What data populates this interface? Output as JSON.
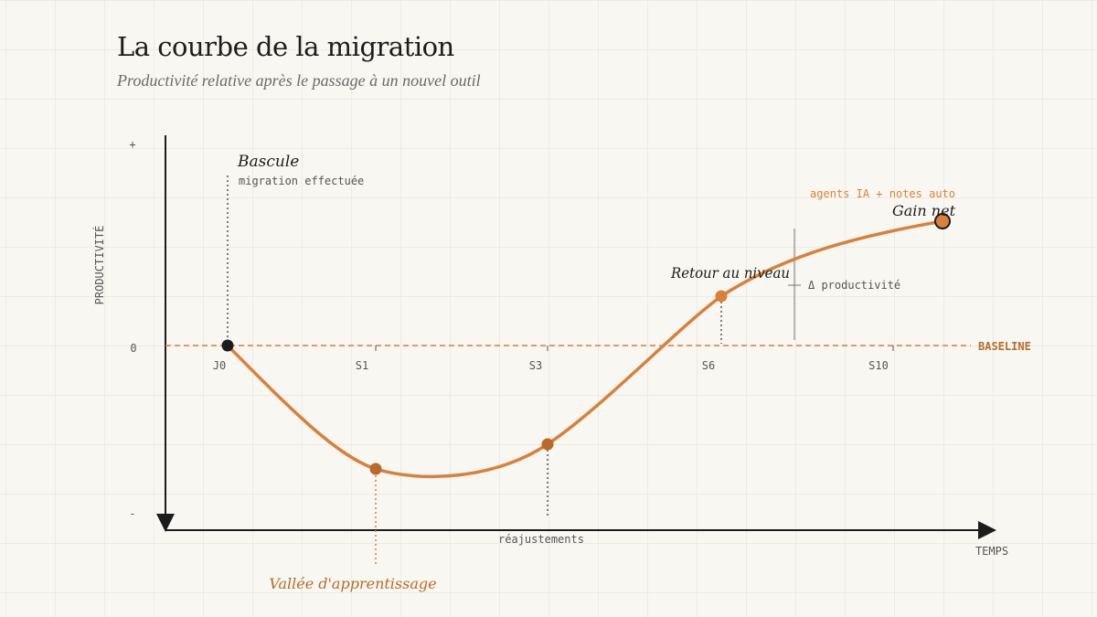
{
  "header": {
    "title": "La courbe de la migration",
    "subtitle": "Productivité relative après le passage à un nouvel outil"
  },
  "axes": {
    "y_label": "PRODUCTIVITÉ",
    "x_label": "TEMPS",
    "y_plus": "+",
    "y_zero": "0",
    "y_minus": "-",
    "baseline_label": "BASELINE",
    "x_ticks": [
      "J0",
      "S1",
      "S3",
      "S6",
      "S10"
    ]
  },
  "annotations": {
    "bascule_title": "Bascule",
    "bascule_sub": "migration effectuée",
    "vallee": "Vallée d'apprentissage",
    "reajustements": "réajustements",
    "retour": "Retour au niveau",
    "gain_title": "Gain net",
    "gain_sub": "agents IA + notes auto",
    "delta": "Δ productivité"
  },
  "colors": {
    "accent": "#d9803a",
    "accent_dark": "#b96a2a",
    "ink": "#1c1c1c",
    "muted": "#555555"
  }
}
